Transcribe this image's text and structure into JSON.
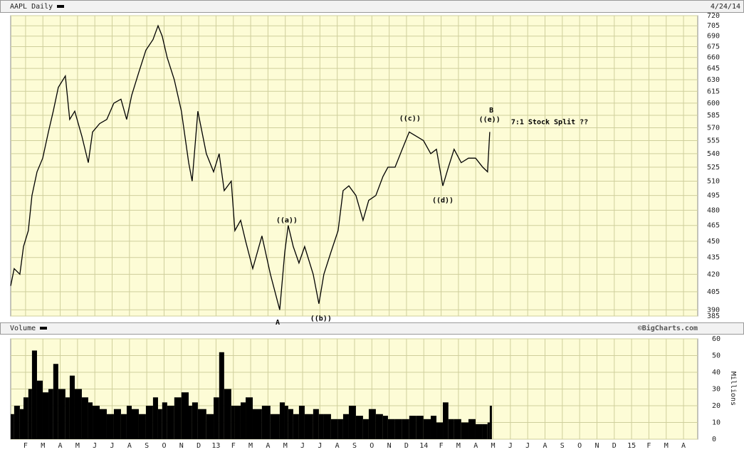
{
  "header": {
    "title": "AAPL Daily",
    "date": "4/24/14",
    "volume_label": "Volume",
    "credit": "©BigCharts.com"
  },
  "chart_data": [
    {
      "type": "line",
      "log_scale": true,
      "grid": true,
      "color": "#000000",
      "x": [
        0.14,
        0.34,
        0.67,
        0.88,
        1.16,
        1.37,
        1.66,
        1.99,
        2.32,
        2.6,
        2.89,
        3.3,
        3.55,
        3.84,
        4.25,
        4.62,
        4.87,
        5.28,
        5.69,
        6.1,
        6.51,
        6.84,
        7.13,
        7.54,
        7.95,
        8.36,
        8.65,
        8.89,
        9.18,
        9.59,
        10.0,
        10.42,
        10.62,
        10.95,
        11.44,
        11.86,
        12.18,
        12.47,
        12.88,
        13.09,
        13.42,
        13.71,
        14.12,
        14.65,
        15.14,
        15.68,
        15.97,
        16.17,
        16.46,
        16.79,
        17.12,
        17.61,
        17.94,
        18.23,
        18.64,
        19.05,
        19.34,
        19.67,
        20.08,
        20.49,
        20.82,
        21.23,
        21.64,
        21.93,
        22.34,
        22.75,
        23.16,
        23.57,
        23.98,
        24.4,
        24.73,
        25.1,
        25.42,
        25.75,
        26.16,
        26.58,
        26.99,
        27.4,
        27.68,
        27.81
      ],
      "values": [
        410,
        425,
        420,
        445,
        460,
        495,
        520,
        535,
        565,
        590,
        620,
        635,
        580,
        590,
        560,
        530,
        565,
        575,
        580,
        600,
        605,
        580,
        610,
        640,
        670,
        685,
        705,
        690,
        660,
        630,
        590,
        530,
        510,
        590,
        540,
        520,
        540,
        500,
        510,
        460,
        470,
        450,
        425,
        455,
        420,
        390,
        440,
        465,
        445,
        430,
        445,
        420,
        395,
        420,
        440,
        460,
        500,
        505,
        495,
        470,
        490,
        495,
        515,
        525,
        525,
        545,
        565,
        560,
        555,
        540,
        545,
        505,
        525,
        545,
        530,
        535,
        535,
        525,
        520,
        565
      ],
      "xlim": [
        0.14,
        39.82
      ],
      "ylim": [
        385,
        720
      ],
      "yticks": [
        385,
        390,
        405,
        420,
        435,
        450,
        465,
        480,
        495,
        510,
        525,
        540,
        555,
        570,
        585,
        600,
        615,
        630,
        645,
        660,
        675,
        690,
        705,
        720
      ],
      "annotations": [
        {
          "text": "((a))",
          "x": 16.09,
          "y": 470
        },
        {
          "text": "A",
          "x": 15.56,
          "y": 380
        },
        {
          "text": "((b))",
          "x": 18.06,
          "y": 383
        },
        {
          "text": "((c))",
          "x": 23.2,
          "y": 581
        },
        {
          "text": "((d))",
          "x": 25.1,
          "y": 490
        },
        {
          "text": "((e))",
          "x": 27.8,
          "y": 580
        },
        {
          "text": "B",
          "x": 27.9,
          "y": 591
        },
        {
          "text": "7:1 Stock Split ??",
          "x": 29.04,
          "y": 577
        }
      ]
    },
    {
      "type": "bar",
      "color": "#000000",
      "grid": true,
      "y_label": "Millions",
      "values": [
        15,
        20,
        18,
        25,
        30,
        53,
        35,
        28,
        30,
        45,
        30,
        25,
        38,
        30,
        25,
        22,
        20,
        18,
        15,
        18,
        15,
        20,
        18,
        15,
        20,
        25,
        18,
        22,
        20,
        25,
        28,
        20,
        22,
        18,
        15,
        25,
        52,
        30,
        20,
        20,
        22,
        25,
        18,
        20,
        15,
        22,
        20,
        18,
        15,
        20,
        15,
        18,
        15,
        15,
        12,
        12,
        15,
        20,
        14,
        12,
        18,
        15,
        14,
        12,
        12,
        12,
        14,
        14,
        12,
        14,
        10,
        22,
        12,
        12,
        10,
        12,
        9,
        9,
        10,
        20
      ],
      "ylim": [
        0,
        60
      ],
      "yticks": [
        0,
        10,
        20,
        30,
        40,
        50,
        60
      ],
      "xticks": [
        {
          "value": 1,
          "label": "F"
        },
        {
          "value": 2,
          "label": "M"
        },
        {
          "value": 3,
          "label": "A"
        },
        {
          "value": 4,
          "label": "M"
        },
        {
          "value": 5,
          "label": "J"
        },
        {
          "value": 6,
          "label": "J"
        },
        {
          "value": 7,
          "label": "A"
        },
        {
          "value": 8,
          "label": "S"
        },
        {
          "value": 9,
          "label": "O"
        },
        {
          "value": 10,
          "label": "N"
        },
        {
          "value": 11,
          "label": "D"
        },
        {
          "value": 12,
          "label": "13"
        },
        {
          "value": 13,
          "label": "F"
        },
        {
          "value": 14,
          "label": "M"
        },
        {
          "value": 15,
          "label": "A"
        },
        {
          "value": 16,
          "label": "M"
        },
        {
          "value": 17,
          "label": "J"
        },
        {
          "value": 18,
          "label": "J"
        },
        {
          "value": 19,
          "label": "A"
        },
        {
          "value": 20,
          "label": "S"
        },
        {
          "value": 21,
          "label": "O"
        },
        {
          "value": 22,
          "label": "N"
        },
        {
          "value": 23,
          "label": "D"
        },
        {
          "value": 24,
          "label": "14"
        },
        {
          "value": 25,
          "label": "F"
        },
        {
          "value": 26,
          "label": "M"
        },
        {
          "value": 27,
          "label": "A"
        },
        {
          "value": 28,
          "label": "M"
        },
        {
          "value": 29,
          "label": "J"
        },
        {
          "value": 30,
          "label": "J"
        },
        {
          "value": 31,
          "label": "A"
        },
        {
          "value": 32,
          "label": "S"
        },
        {
          "value": 33,
          "label": "O"
        },
        {
          "value": 34,
          "label": "N"
        },
        {
          "value": 35,
          "label": "D"
        },
        {
          "value": 36,
          "label": "15"
        },
        {
          "value": 37,
          "label": "F"
        },
        {
          "value": 38,
          "label": "M"
        },
        {
          "value": 39,
          "label": "A"
        }
      ]
    }
  ]
}
